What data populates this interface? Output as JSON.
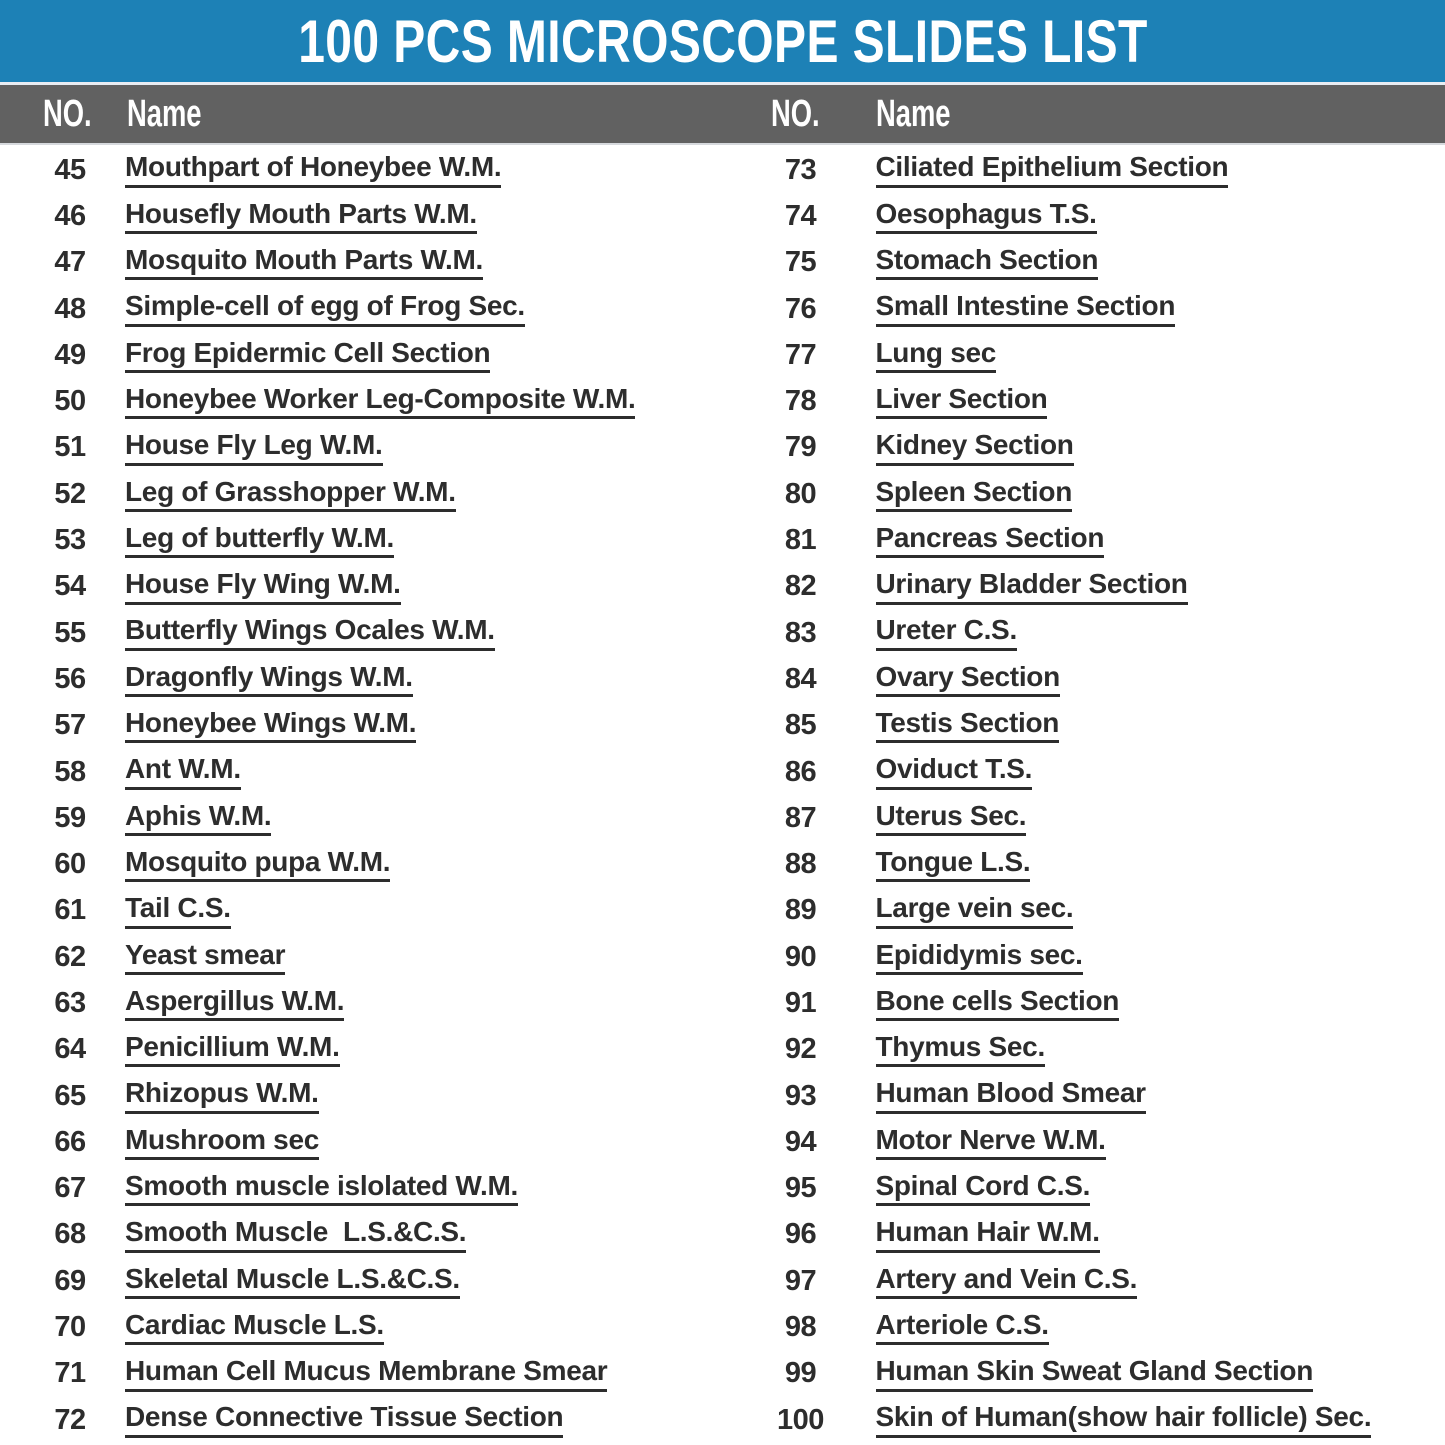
{
  "title": "100 PCS MICROSCOPE SLIDES LIST",
  "colors": {
    "title_bar_bg": "#1d81b6",
    "header_bar_bg": "#616161",
    "text": "#2d2d2d"
  },
  "columns": [
    {
      "header": {
        "no": "NO.",
        "name": "Name"
      },
      "items": [
        {
          "no": "45",
          "name": "Mouthpart of Honeybee W.M."
        },
        {
          "no": "46",
          "name": "Housefly Mouth Parts W.M."
        },
        {
          "no": "47",
          "name": "Mosquito Mouth Parts W.M."
        },
        {
          "no": "48",
          "name": "Simple-cell of egg of Frog Sec."
        },
        {
          "no": "49",
          "name": "Frog Epidermic Cell Section"
        },
        {
          "no": "50",
          "name": "Honeybee Worker Leg-Composite W.M."
        },
        {
          "no": "51",
          "name": "House Fly Leg W.M."
        },
        {
          "no": "52",
          "name": "Leg of Grasshopper W.M."
        },
        {
          "no": "53",
          "name": "Leg of butterfly W.M."
        },
        {
          "no": "54",
          "name": "House Fly Wing W.M."
        },
        {
          "no": "55",
          "name": "Butterfly Wings Ocales W.M."
        },
        {
          "no": "56",
          "name": "Dragonfly Wings W.M."
        },
        {
          "no": "57",
          "name": "Honeybee Wings W.M."
        },
        {
          "no": "58",
          "name": "Ant W.M."
        },
        {
          "no": "59",
          "name": "Aphis W.M."
        },
        {
          "no": "60",
          "name": "Mosquito pupa W.M."
        },
        {
          "no": "61",
          "name": "Tail C.S."
        },
        {
          "no": "62",
          "name": "Yeast smear"
        },
        {
          "no": "63",
          "name": "Aspergillus W.M."
        },
        {
          "no": "64",
          "name": "Penicillium W.M."
        },
        {
          "no": "65",
          "name": "Rhizopus W.M."
        },
        {
          "no": "66",
          "name": "Mushroom sec"
        },
        {
          "no": "67",
          "name": "Smooth muscle islolated W.M."
        },
        {
          "no": "68",
          "name": "Smooth Muscle  L.S.&C.S."
        },
        {
          "no": "69",
          "name": "Skeletal Muscle L.S.&C.S."
        },
        {
          "no": "70",
          "name": "Cardiac Muscle L.S."
        },
        {
          "no": "71",
          "name": "Human Cell Mucus Membrane Smear"
        },
        {
          "no": "72",
          "name": "Dense Connective Tissue Section"
        }
      ]
    },
    {
      "header": {
        "no": "NO.",
        "name": "Name"
      },
      "items": [
        {
          "no": "73",
          "name": "Ciliated Epithelium Section"
        },
        {
          "no": "74",
          "name": "Oesophagus T.S."
        },
        {
          "no": "75",
          "name": "Stomach Section"
        },
        {
          "no": "76",
          "name": "Small Intestine Section"
        },
        {
          "no": "77",
          "name": "Lung sec"
        },
        {
          "no": "78",
          "name": "Liver Section"
        },
        {
          "no": "79",
          "name": "Kidney Section"
        },
        {
          "no": "80",
          "name": "Spleen Section"
        },
        {
          "no": "81",
          "name": "Pancreas Section"
        },
        {
          "no": "82",
          "name": "Urinary Bladder Section"
        },
        {
          "no": "83",
          "name": "Ureter C.S."
        },
        {
          "no": "84",
          "name": "Ovary Section"
        },
        {
          "no": "85",
          "name": "Testis Section"
        },
        {
          "no": "86",
          "name": "Oviduct T.S."
        },
        {
          "no": "87",
          "name": "Uterus Sec."
        },
        {
          "no": "88",
          "name": "Tongue L.S."
        },
        {
          "no": "89",
          "name": "Large vein sec."
        },
        {
          "no": "90",
          "name": "Epididymis sec."
        },
        {
          "no": "91",
          "name": "Bone cells Section"
        },
        {
          "no": "92",
          "name": "Thymus Sec."
        },
        {
          "no": "93",
          "name": "Human Blood Smear"
        },
        {
          "no": "94",
          "name": "Motor Nerve W.M."
        },
        {
          "no": "95",
          "name": "Spinal Cord C.S."
        },
        {
          "no": "96",
          "name": "Human Hair W.M."
        },
        {
          "no": "97",
          "name": "Artery and Vein C.S."
        },
        {
          "no": "98",
          "name": "Arteriole C.S."
        },
        {
          "no": "99",
          "name": "Human Skin Sweat Gland Section"
        },
        {
          "no": "100",
          "name": "Skin of Human(show hair follicle) Sec."
        }
      ]
    }
  ]
}
